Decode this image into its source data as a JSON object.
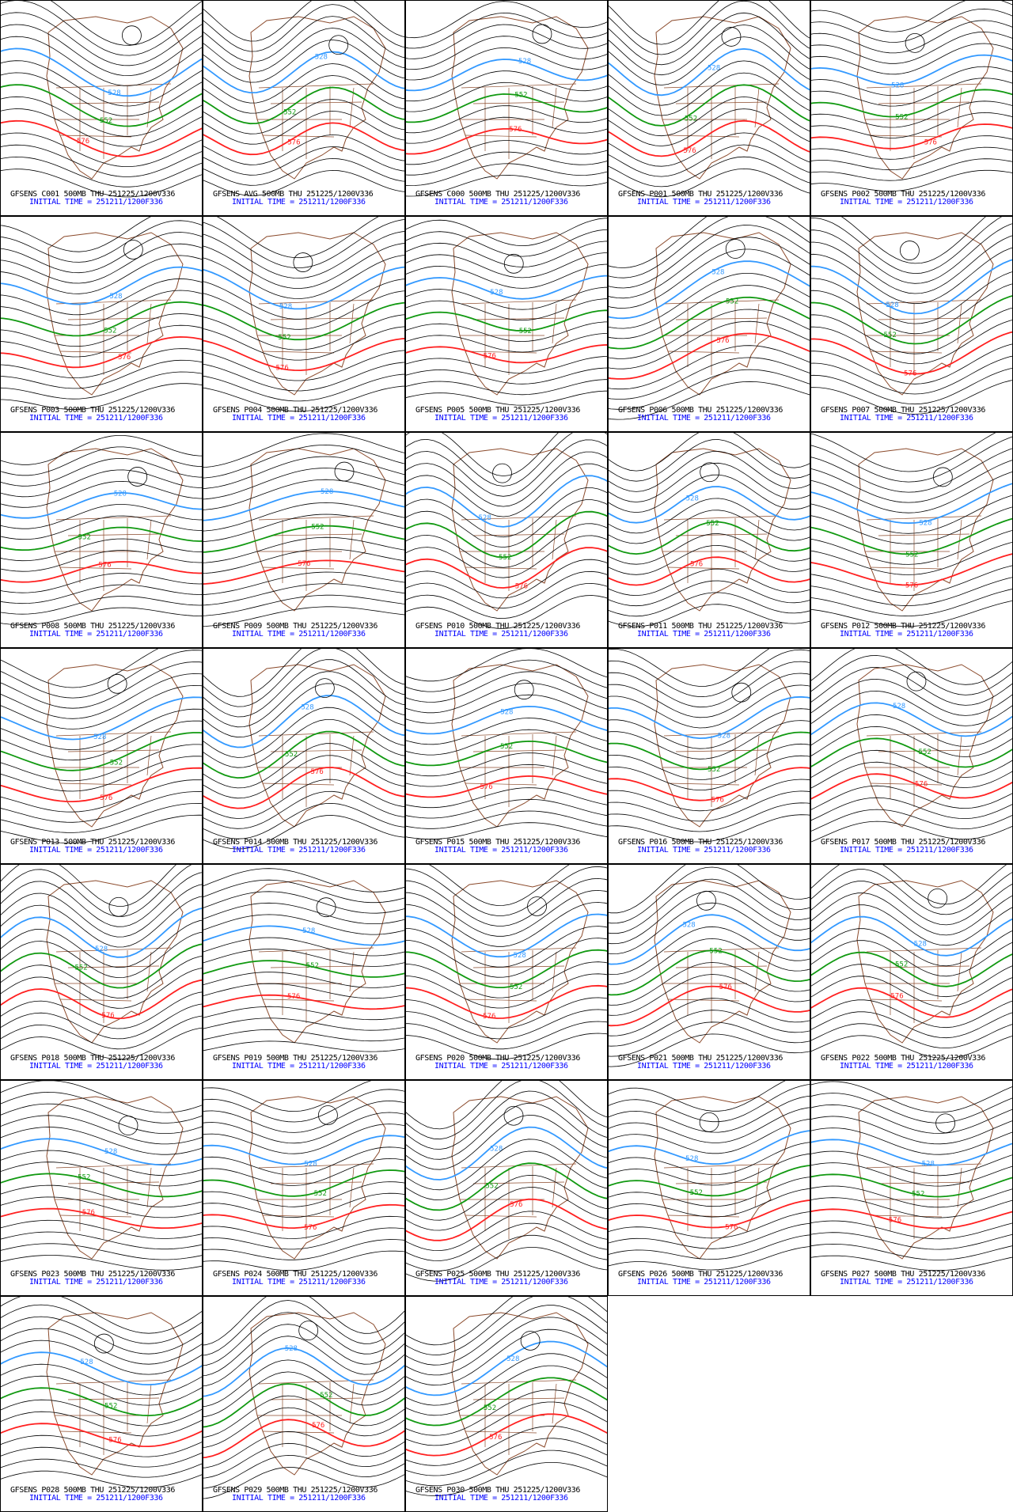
{
  "chart_data": {
    "type": "contour-map-grid",
    "level": "500MB",
    "valid": "THU 251225/1200V336",
    "initial_time_label": "INITIAL TIME = 251211/1200F336",
    "highlight_contours": [
      {
        "value": "528",
        "color": "#3399ff"
      },
      {
        "value": "552",
        "color": "#119911"
      },
      {
        "value": "576",
        "color": "#ff2020"
      }
    ],
    "contour_color": "#000000",
    "map_color": "#8b4a2b",
    "panels": [
      "GFSENS C001 500MB THU 251225/1200V336",
      "GFSENS AVG 500MB THU 251225/1200V336",
      "GFSENS C000 500MB THU 251225/1200V336",
      "GFSENS P001 500MB THU 251225/1200V336",
      "GFSENS P002 500MB THU 251225/1200V336",
      "GFSENS P003 500MB THU 251225/1200V336",
      "GFSENS P004 500MB THU 251225/1200V336",
      "GFSENS P005 500MB THU 251225/1200V336",
      "GFSENS P006 500MB THU 251225/1200V336",
      "GFSENS P007 500MB THU 251225/1200V336",
      "GFSENS P008 500MB THU 251225/1200V336",
      "GFSENS P009 500MB THU 251225/1200V336",
      "GFSENS P010 500MB THU 251225/1200V336",
      "GFSENS P011 500MB THU 251225/1200V336",
      "GFSENS P012 500MB THU 251225/1200V336",
      "GFSENS P013 500MB THU 251225/1200V336",
      "GFSENS P014 500MB THU 251225/1200V336",
      "GFSENS P015 500MB THU 251225/1200V336",
      "GFSENS P016 500MB THU 251225/1200V336",
      "GFSENS P017 500MB THU 251225/1200V336",
      "GFSENS P018 500MB THU 251225/1200V336",
      "GFSENS P019 500MB THU 251225/1200V336",
      "GFSENS P020 500MB THU 251225/1200V336",
      "GFSENS P021 500MB THU 251225/1200V336",
      "GFSENS P022 500MB THU 251225/1200V336",
      "GFSENS P023 500MB THU 251225/1200V336",
      "GFSENS P024 500MB THU 251225/1200V336",
      "GFSENS P025 500MB THU 251225/1200V336",
      "GFSENS P026 500MB THU 251225/1200V336",
      "GFSENS P027 500MB THU 251225/1200V336",
      "GFSENS P028 500MB THU 251225/1200V336",
      "GFSENS P029 500MB THU 251225/1200V336",
      "GFSENS P030 500MB THU 251225/1200V336"
    ]
  }
}
